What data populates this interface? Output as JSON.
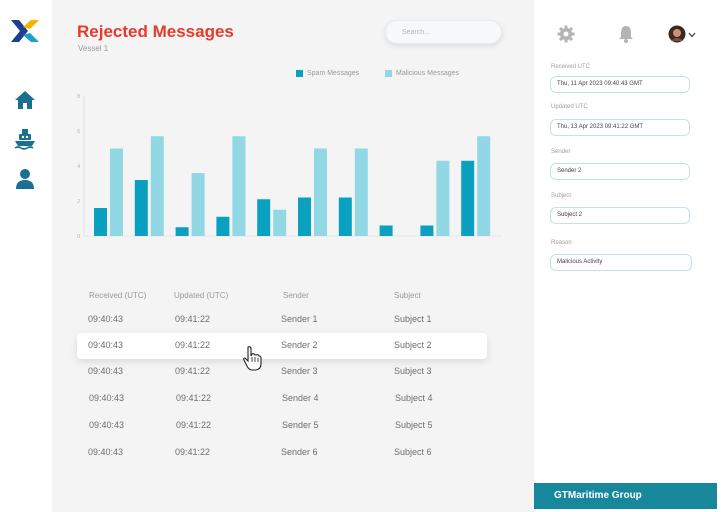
{
  "header": {
    "title": "Rejected Messages",
    "subtitle": "Vessel 1",
    "search_placeholder": "Search..."
  },
  "legend": [
    {
      "label": "Spam Messages",
      "color": "#0aa0c0"
    },
    {
      "label": "Malicious Messages",
      "color": "#92d7e4"
    }
  ],
  "chart_data": {
    "type": "bar",
    "ylim": [
      0,
      8
    ],
    "yticks": [
      "0",
      "2",
      "4",
      "6",
      "8"
    ],
    "series": [
      {
        "name": "Spam Messages",
        "color": "#0aa0c0",
        "values": [
          1.6,
          3.2,
          0.5,
          1.1,
          2.1,
          2.2,
          2.2,
          0.6,
          0.6,
          4.3
        ]
      },
      {
        "name": "Malicious Messages",
        "color": "#92d7e4",
        "values": [
          5.0,
          5.7,
          3.6,
          5.7,
          1.5,
          5.0,
          5.0,
          0,
          4.3,
          5.7
        ]
      }
    ]
  },
  "table": {
    "columns": [
      "Received (UTC)",
      "Updated (UTC)",
      "Sender",
      "Subject"
    ],
    "rows": [
      [
        "09:40:43",
        "09:41:22",
        "Sender 1",
        "Subject 1"
      ],
      [
        "09:40:43",
        "09:41:22",
        "Sender 2",
        "Subject 2"
      ],
      [
        "09:40:43",
        "09:41:22",
        "Sender 3",
        "Subject 3"
      ],
      [
        "09:40:43",
        "09:41:22",
        "Sender 4",
        "Subject 4"
      ],
      [
        "09:40:43",
        "09:41:22",
        "Sender 5",
        "Subject 5"
      ],
      [
        "09:40:43",
        "09:41:22",
        "Sender 6",
        "Subject 6"
      ]
    ],
    "highlighted_row": 1
  },
  "details": {
    "received_label": "Received UTC",
    "received_value": "Thu, 11 Apr 2023 09:40:43 GMT",
    "updated_label": "Updated UTC",
    "updated_value": "Thu, 13 Apr 2023 09:41:22 GMT",
    "sender_label": "Sender",
    "sender_value": "Sender 2",
    "subject_label": "Subject",
    "subject_value": "Subject 2",
    "reason_label": "Reason",
    "reason_value": "Malicious Activity"
  },
  "footer": {
    "company": "GTMaritime Group"
  },
  "colors": {
    "accent": "#e53b2b",
    "brand": "#17879b",
    "nav_icon": "#1a6f93"
  },
  "icons": [
    "logo-icon",
    "home-icon",
    "ship-icon",
    "user-icon",
    "settings-icon",
    "bell-icon",
    "avatar",
    "chevron-down-icon",
    "pointer-cursor-icon"
  ]
}
